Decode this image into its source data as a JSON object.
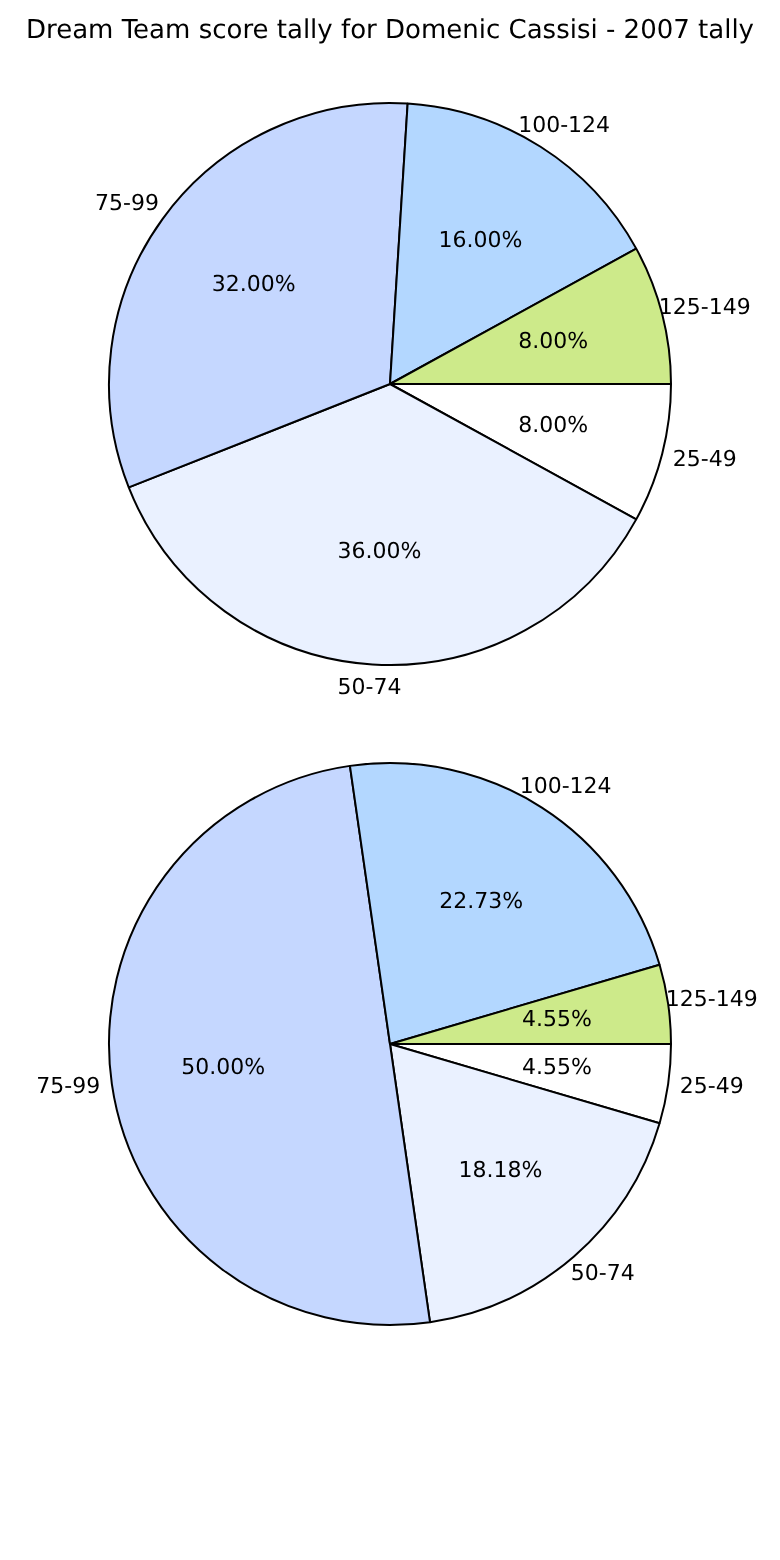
{
  "chart_data": [
    {
      "type": "pie",
      "title": "Dream Team score tally for Domenic Cassisi - 2007 tally",
      "categories": [
        "25-49",
        "50-74",
        "75-99",
        "100-124",
        "125-149"
      ],
      "values": [
        8,
        36,
        32,
        16,
        8
      ],
      "value_labels": [
        "8.00%",
        "36.00%",
        "32.00%",
        "16.00%",
        "8.00%"
      ],
      "colors": [
        "#ffffff",
        "#eaf1ff",
        "#c5d7ff",
        "#b3d7ff",
        "#cdea8a"
      ]
    },
    {
      "type": "pie",
      "categories": [
        "25-49",
        "50-74",
        "75-99",
        "100-124",
        "125-149"
      ],
      "values": [
        4.55,
        18.18,
        50,
        22.73,
        4.55
      ],
      "value_labels": [
        "4.55%",
        "18.18%",
        "50.00%",
        "22.73%",
        "4.55%"
      ],
      "colors": [
        "#ffffff",
        "#eaf1ff",
        "#c5d7ff",
        "#b3d7ff",
        "#cdea8a"
      ]
    }
  ]
}
